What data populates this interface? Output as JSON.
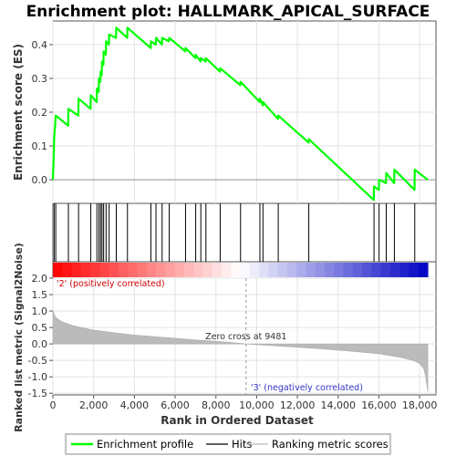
{
  "chart_data": {
    "type": "line",
    "title": "Enrichment plot: HALLMARK_APICAL_SURFACE",
    "xlabel": "Rank in Ordered Dataset",
    "ylabel_top": "Enrichment score (ES)",
    "ylabel_bottom": "Ranked list metric (Signal2Noise)",
    "xlim": [
      0,
      18800
    ],
    "x_ticks": [
      0,
      2000,
      4000,
      6000,
      8000,
      10000,
      12000,
      14000,
      16000,
      18000
    ],
    "x_tick_labels": [
      "0",
      "2,000",
      "4,000",
      "6,000",
      "8,000",
      "10,000",
      "12,000",
      "14,000",
      "16,000",
      "18,000"
    ],
    "es_ylim": [
      -0.07,
      0.47
    ],
    "es_ticks": [
      0.0,
      0.1,
      0.2,
      0.3,
      0.4
    ],
    "es_tick_labels": [
      "0.0",
      "0.1",
      "0.2",
      "0.3",
      "0.4"
    ],
    "metric_ylim": [
      -1.55,
      2.0
    ],
    "metric_ticks": [
      2.0,
      1.5,
      1.0,
      0.5,
      0.0,
      -0.5,
      -1.0,
      -1.5
    ],
    "metric_tick_labels": [
      "2.0",
      "1.5",
      "1.0",
      "0.5",
      "0.0",
      "-0.5",
      "-1.0",
      "-1.5"
    ],
    "grid": true,
    "legend_position": "bottom",
    "series": [
      {
        "name": "Enrichment profile",
        "color": "#00ff00",
        "x": [
          0,
          50,
          60,
          130,
          140,
          750,
          760,
          1250,
          1260,
          1850,
          1860,
          2150,
          2160,
          2250,
          2260,
          2330,
          2340,
          2400,
          2410,
          2480,
          2490,
          2600,
          2610,
          2750,
          2760,
          3100,
          3110,
          3650,
          3660,
          4800,
          4810,
          5050,
          5060,
          5350,
          5360,
          5700,
          5710,
          6500,
          6510,
          7000,
          7010,
          7250,
          7260,
          7500,
          7510,
          8200,
          8210,
          9200,
          9210,
          10150,
          10160,
          10300,
          10310,
          11050,
          11060,
          12550,
          12560,
          15750,
          15760,
          16000,
          16010,
          16350,
          16360,
          16750,
          16760,
          17750,
          17760,
          18400
        ],
        "y": [
          0.0,
          0.09,
          0.12,
          0.18,
          0.19,
          0.16,
          0.21,
          0.19,
          0.24,
          0.21,
          0.25,
          0.23,
          0.27,
          0.26,
          0.3,
          0.29,
          0.32,
          0.31,
          0.35,
          0.34,
          0.38,
          0.37,
          0.41,
          0.4,
          0.43,
          0.42,
          0.45,
          0.42,
          0.45,
          0.39,
          0.41,
          0.4,
          0.42,
          0.4,
          0.42,
          0.41,
          0.42,
          0.38,
          0.39,
          0.36,
          0.37,
          0.35,
          0.36,
          0.35,
          0.36,
          0.32,
          0.33,
          0.28,
          0.29,
          0.23,
          0.24,
          0.22,
          0.23,
          0.18,
          0.19,
          0.11,
          0.12,
          -0.06,
          -0.02,
          -0.03,
          0.0,
          -0.01,
          0.02,
          -0.01,
          0.03,
          -0.03,
          0.03,
          0.0
        ]
      },
      {
        "name": "Hits",
        "color": "#000000",
        "positions": [
          60,
          140,
          760,
          1260,
          1860,
          2160,
          2260,
          2340,
          2410,
          2490,
          2610,
          2760,
          3110,
          3660,
          4810,
          5060,
          5360,
          5710,
          6510,
          7010,
          7260,
          7510,
          8210,
          9210,
          10160,
          10310,
          11060,
          12560,
          15760,
          16010,
          16360,
          16760,
          17760
        ]
      },
      {
        "name": "Ranking metric scores",
        "color": "#bbbbbb",
        "x": [
          0,
          100,
          200,
          500,
          1000,
          2000,
          3000,
          4000,
          5000,
          6000,
          7000,
          8000,
          9000,
          9481,
          10000,
          11000,
          12000,
          13000,
          14000,
          15000,
          16000,
          16500,
          17000,
          17500,
          17800,
          18000,
          18200,
          18300,
          18400
        ],
        "y": [
          1.0,
          0.85,
          0.77,
          0.66,
          0.55,
          0.42,
          0.34,
          0.27,
          0.22,
          0.17,
          0.12,
          0.08,
          0.03,
          0.0,
          -0.02,
          -0.06,
          -0.1,
          -0.14,
          -0.19,
          -0.24,
          -0.3,
          -0.35,
          -0.4,
          -0.47,
          -0.53,
          -0.6,
          -0.75,
          -1.0,
          -1.45
        ]
      }
    ],
    "annotations": {
      "positive_label": "'2' (positively correlated)",
      "negative_label": "'3' (negatively correlated)",
      "zero_cross_label": "Zero cross at 9481",
      "zero_cross_x": 9481
    }
  },
  "legend": {
    "items": [
      {
        "label": "Enrichment profile",
        "color": "#00ff00"
      },
      {
        "label": "Hits",
        "color": "#000000"
      },
      {
        "label": "Ranking metric scores",
        "color": "#bbbbbb"
      }
    ]
  }
}
